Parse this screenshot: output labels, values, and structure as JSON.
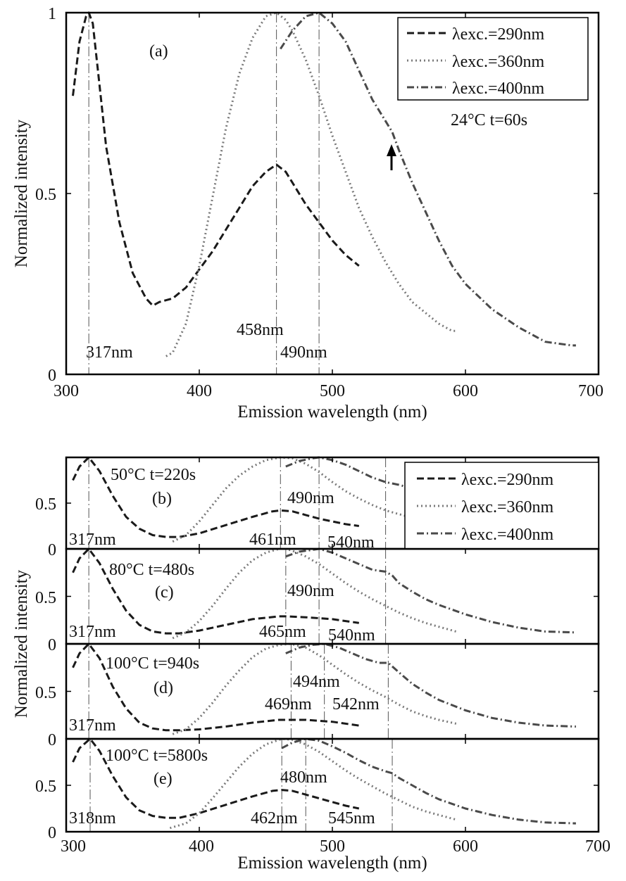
{
  "figure": {
    "x_tick_labels_a": [
      "300",
      "400",
      "500",
      "600",
      "700"
    ],
    "x_tick_labels_bottom": [
      "300",
      "400",
      "500",
      "600",
      "700"
    ],
    "colors": {
      "exc290": "#1a1a1a",
      "exc360": "#7a7a7a",
      "exc400": "#4a4a4a",
      "axis": "#000000"
    }
  },
  "chart_data": [
    {
      "id": "a",
      "type": "line",
      "panel_label": "(a)",
      "condition": "24°C t=60s",
      "xlabel": "Emission wavelength (nm)",
      "ylabel": "Normalized intensity",
      "xlim": [
        300,
        700
      ],
      "ylim": [
        0,
        1
      ],
      "y_tick_labels": [
        "0",
        "0.5",
        "1"
      ],
      "legend": {
        "position": "top-right",
        "entries": [
          "λexc.=290nm",
          "λexc.=360nm",
          "λexc.=400nm"
        ]
      },
      "series": [
        {
          "name": "λexc.=290nm",
          "x": [
            305,
            310,
            315,
            317,
            320,
            325,
            330,
            340,
            350,
            360,
            365,
            370,
            380,
            390,
            400,
            410,
            420,
            430,
            440,
            450,
            458,
            465,
            470,
            480,
            490,
            500,
            510,
            520
          ],
          "y": [
            0.77,
            0.92,
            0.99,
            1.0,
            0.97,
            0.8,
            0.63,
            0.42,
            0.28,
            0.21,
            0.19,
            0.2,
            0.21,
            0.24,
            0.29,
            0.34,
            0.4,
            0.46,
            0.52,
            0.56,
            0.58,
            0.56,
            0.53,
            0.47,
            0.42,
            0.37,
            0.33,
            0.3
          ]
        },
        {
          "name": "λexc.=360nm",
          "x": [
            375,
            380,
            390,
            400,
            410,
            420,
            430,
            440,
            450,
            458,
            465,
            470,
            480,
            490,
            500,
            510,
            520,
            530,
            540,
            550,
            560,
            570,
            580,
            590,
            593
          ],
          "y": [
            0.05,
            0.06,
            0.14,
            0.3,
            0.49,
            0.68,
            0.83,
            0.93,
            0.99,
            1.0,
            0.98,
            0.95,
            0.87,
            0.77,
            0.66,
            0.56,
            0.46,
            0.38,
            0.31,
            0.25,
            0.2,
            0.17,
            0.14,
            0.12,
            0.12
          ]
        },
        {
          "name": "λexc.=400nm",
          "x": [
            461,
            470,
            480,
            490,
            500,
            510,
            520,
            530,
            540,
            545,
            550,
            560,
            570,
            580,
            590,
            600,
            620,
            640,
            660,
            680,
            683
          ],
          "y": [
            0.9,
            0.95,
            0.99,
            1.0,
            0.97,
            0.92,
            0.84,
            0.76,
            0.7,
            0.67,
            0.62,
            0.53,
            0.45,
            0.37,
            0.3,
            0.25,
            0.18,
            0.13,
            0.09,
            0.08,
            0.08
          ]
        }
      ],
      "reference_lines": [
        317,
        458,
        490
      ],
      "annotations": [
        "317nm",
        "458nm",
        "490nm"
      ],
      "arrow_at": 545
    },
    {
      "id": "b",
      "type": "line",
      "panel_label": "(b)",
      "condition": "50°C t=220s",
      "xlim": [
        300,
        700
      ],
      "ylim": [
        0,
        1
      ],
      "y_tick_labels": [
        "0",
        "0.5"
      ],
      "legend": {
        "position": "top-right",
        "entries": [
          "λexc.=290nm",
          "λexc.=360nm",
          "λexc.=400nm"
        ]
      },
      "series": [
        {
          "name": "λexc.=290nm",
          "x": [
            305,
            310,
            317,
            325,
            335,
            345,
            355,
            365,
            375,
            385,
            400,
            420,
            440,
            455,
            461,
            470,
            480,
            490,
            500,
            510,
            520
          ],
          "y": [
            0.75,
            0.9,
            1.0,
            0.85,
            0.58,
            0.35,
            0.22,
            0.15,
            0.13,
            0.13,
            0.17,
            0.26,
            0.35,
            0.41,
            0.42,
            0.41,
            0.37,
            0.33,
            0.3,
            0.27,
            0.25
          ]
        },
        {
          "name": "λexc.=360nm",
          "x": [
            380,
            390,
            400,
            410,
            420,
            430,
            440,
            450,
            461,
            470,
            480,
            490,
            500,
            510,
            520,
            530,
            540,
            550,
            560,
            570
          ],
          "y": [
            0.08,
            0.15,
            0.3,
            0.48,
            0.66,
            0.8,
            0.9,
            0.97,
            1.0,
            0.99,
            0.93,
            0.84,
            0.73,
            0.63,
            0.55,
            0.48,
            0.42,
            0.38,
            0.34,
            0.3
          ]
        },
        {
          "name": "λexc.=400nm",
          "x": [
            465,
            475,
            485,
            490,
            500,
            510,
            520,
            530,
            540,
            550,
            560,
            570
          ],
          "y": [
            0.9,
            0.96,
            0.99,
            1.0,
            0.97,
            0.92,
            0.85,
            0.78,
            0.73,
            0.7,
            0.66,
            0.62
          ]
        }
      ],
      "reference_lines": [
        317,
        461,
        490,
        540
      ],
      "annotations": [
        "317nm",
        "461nm",
        "490nm",
        "540nm"
      ]
    },
    {
      "id": "c",
      "type": "line",
      "panel_label": "(c)",
      "condition": "80°C t=480s",
      "xlim": [
        300,
        700
      ],
      "ylim": [
        0,
        1
      ],
      "y_tick_labels": [
        "0",
        "0.5"
      ],
      "series": [
        {
          "name": "λexc.=290nm",
          "x": [
            305,
            310,
            317,
            325,
            335,
            345,
            355,
            365,
            375,
            385,
            400,
            420,
            440,
            460,
            465,
            480,
            500,
            520
          ],
          "y": [
            0.75,
            0.9,
            1.0,
            0.85,
            0.58,
            0.35,
            0.2,
            0.13,
            0.11,
            0.11,
            0.14,
            0.2,
            0.26,
            0.29,
            0.29,
            0.28,
            0.26,
            0.22
          ]
        },
        {
          "name": "λexc.=360nm",
          "x": [
            380,
            390,
            400,
            410,
            420,
            430,
            440,
            450,
            460,
            465,
            470,
            480,
            490,
            500,
            510,
            520,
            530,
            540,
            550,
            560,
            570,
            580,
            593
          ],
          "y": [
            0.06,
            0.12,
            0.24,
            0.4,
            0.58,
            0.75,
            0.88,
            0.96,
            1.0,
            1.0,
            0.98,
            0.92,
            0.84,
            0.74,
            0.64,
            0.55,
            0.47,
            0.4,
            0.33,
            0.27,
            0.22,
            0.18,
            0.13
          ]
        },
        {
          "name": "λexc.=400nm",
          "x": [
            465,
            475,
            485,
            490,
            500,
            510,
            520,
            530,
            540,
            545,
            550,
            560,
            570,
            580,
            600,
            620,
            640,
            660,
            683
          ],
          "y": [
            0.92,
            0.97,
            0.99,
            1.0,
            0.96,
            0.9,
            0.84,
            0.78,
            0.76,
            0.72,
            0.64,
            0.55,
            0.47,
            0.41,
            0.31,
            0.23,
            0.17,
            0.13,
            0.12
          ]
        }
      ],
      "reference_lines": [
        317,
        465,
        490,
        540
      ],
      "annotations": [
        "317nm",
        "465nm",
        "490nm",
        "540nm"
      ]
    },
    {
      "id": "d",
      "type": "line",
      "panel_label": "(d)",
      "condition": "100°C t=940s",
      "xlim": [
        300,
        700
      ],
      "ylim": [
        0,
        1
      ],
      "y_tick_labels": [
        "0",
        "0.5"
      ],
      "series": [
        {
          "name": "λexc.=290nm",
          "x": [
            305,
            310,
            317,
            325,
            335,
            345,
            355,
            365,
            375,
            385,
            400,
            420,
            440,
            460,
            469,
            480,
            500,
            520
          ],
          "y": [
            0.75,
            0.9,
            1.0,
            0.85,
            0.55,
            0.32,
            0.17,
            0.11,
            0.09,
            0.09,
            0.1,
            0.13,
            0.17,
            0.2,
            0.2,
            0.2,
            0.18,
            0.14
          ]
        },
        {
          "name": "λexc.=360nm",
          "x": [
            380,
            390,
            400,
            410,
            420,
            430,
            440,
            450,
            460,
            469,
            480,
            490,
            500,
            510,
            520,
            530,
            540,
            550,
            560,
            570,
            580,
            593
          ],
          "y": [
            0.05,
            0.1,
            0.22,
            0.38,
            0.56,
            0.72,
            0.86,
            0.95,
            0.99,
            1.0,
            0.96,
            0.88,
            0.78,
            0.68,
            0.59,
            0.51,
            0.44,
            0.36,
            0.29,
            0.24,
            0.2,
            0.16
          ]
        },
        {
          "name": "λexc.=400nm",
          "x": [
            465,
            475,
            485,
            494,
            505,
            515,
            525,
            535,
            542,
            550,
            560,
            570,
            580,
            600,
            620,
            640,
            660,
            683
          ],
          "y": [
            0.9,
            0.96,
            0.99,
            1.0,
            0.96,
            0.9,
            0.84,
            0.8,
            0.8,
            0.7,
            0.58,
            0.49,
            0.41,
            0.3,
            0.22,
            0.17,
            0.14,
            0.13
          ]
        }
      ],
      "reference_lines": [
        317,
        469,
        494,
        542
      ],
      "annotations": [
        "317nm",
        "469nm",
        "494nm",
        "542nm"
      ]
    },
    {
      "id": "e",
      "type": "line",
      "panel_label": "(e)",
      "condition": "100°C t=5800s",
      "xlabel": "Emission wavelength (nm)",
      "xlim": [
        300,
        700
      ],
      "ylim": [
        0,
        1
      ],
      "y_tick_labels": [
        "0",
        "0.5"
      ],
      "series": [
        {
          "name": "λexc.=290nm",
          "x": [
            305,
            310,
            318,
            325,
            335,
            345,
            355,
            365,
            375,
            385,
            400,
            420,
            440,
            455,
            462,
            470,
            480,
            490,
            500,
            510,
            520
          ],
          "y": [
            0.75,
            0.9,
            1.0,
            0.87,
            0.6,
            0.37,
            0.23,
            0.17,
            0.15,
            0.15,
            0.2,
            0.29,
            0.38,
            0.44,
            0.45,
            0.44,
            0.4,
            0.36,
            0.32,
            0.28,
            0.25
          ]
        },
        {
          "name": "λexc.=360nm",
          "x": [
            378,
            390,
            400,
            410,
            420,
            430,
            440,
            450,
            462,
            470,
            480,
            490,
            500,
            510,
            520,
            530,
            540,
            550,
            560,
            570,
            580,
            593
          ],
          "y": [
            0.04,
            0.09,
            0.2,
            0.36,
            0.53,
            0.7,
            0.84,
            0.94,
            1.0,
            0.99,
            0.94,
            0.86,
            0.76,
            0.66,
            0.57,
            0.49,
            0.41,
            0.34,
            0.27,
            0.22,
            0.18,
            0.13
          ]
        },
        {
          "name": "λexc.=400nm",
          "x": [
            462,
            470,
            480,
            490,
            500,
            510,
            520,
            530,
            540,
            545,
            550,
            560,
            570,
            580,
            600,
            620,
            640,
            660,
            683
          ],
          "y": [
            0.9,
            0.96,
            1.0,
            0.98,
            0.92,
            0.85,
            0.77,
            0.7,
            0.65,
            0.63,
            0.58,
            0.5,
            0.42,
            0.35,
            0.25,
            0.18,
            0.13,
            0.1,
            0.09
          ]
        }
      ],
      "reference_lines": [
        318,
        462,
        480,
        545
      ],
      "annotations": [
        "318nm",
        "462nm",
        "480nm",
        "545nm"
      ]
    }
  ],
  "shared": {
    "bottom_ylabel": "Normalized intensity"
  }
}
